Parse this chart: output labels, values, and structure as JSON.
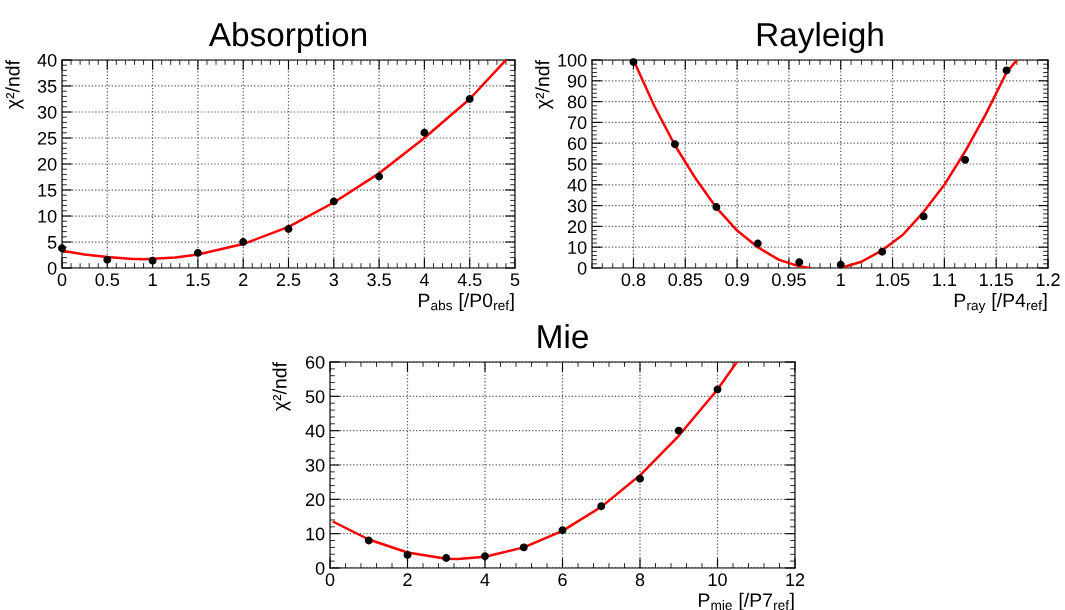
{
  "chart_data": [
    {
      "type": "scatter",
      "title": "Absorption",
      "xlabel": "P$_{abs}$ [/P0$_{ref}$]",
      "ylabel": "χ²/ndf",
      "xlim": [
        0,
        5
      ],
      "ylim": [
        0,
        40
      ],
      "xticks": [
        0,
        0.5,
        1,
        1.5,
        2,
        2.5,
        3,
        3.5,
        4,
        4.5,
        5
      ],
      "yticks": [
        0,
        5,
        10,
        15,
        20,
        25,
        30,
        35,
        40
      ],
      "grid": true,
      "legend": false,
      "series": [
        {
          "type": "line",
          "color": "#ff0000",
          "marker": "none",
          "x": [
            0,
            0.25,
            0.5,
            0.75,
            0.9,
            1.25,
            1.5,
            2,
            2.5,
            3,
            3.5,
            4,
            4.5,
            4.9
          ],
          "values": [
            3.3,
            2.6,
            2.1,
            1.8,
            1.7,
            2.0,
            2.6,
            4.6,
            7.9,
            12.6,
            18.2,
            25,
            32.5,
            40
          ]
        },
        {
          "color": "#000000",
          "marker": "circle",
          "x": [
            0,
            0.5,
            1,
            1.5,
            2,
            2.5,
            3,
            3.5,
            4,
            4.5
          ],
          "values": [
            3.8,
            1.6,
            1.4,
            2.9,
            5.0,
            7.5,
            12.8,
            17.6,
            26,
            32.5
          ]
        }
      ]
    },
    {
      "type": "scatter",
      "title": "Rayleigh",
      "xlabel": "P$_{ray}$ [/P4$_{ref}$]",
      "ylabel": "χ²/ndf",
      "xlim": [
        0.76,
        1.2
      ],
      "ylim": [
        0,
        100
      ],
      "xticks": [
        0.8,
        0.85,
        0.9,
        0.95,
        1,
        1.05,
        1.1,
        1.15,
        1.2
      ],
      "yticks": [
        0,
        10,
        20,
        30,
        40,
        50,
        60,
        70,
        80,
        90,
        100
      ],
      "grid": true,
      "legend": false,
      "series": [
        {
          "type": "line",
          "color": "#ff0000",
          "marker": "none",
          "x": [
            0.8,
            0.82,
            0.84,
            0.86,
            0.88,
            0.9,
            0.92,
            0.94,
            0.96,
            0.97,
            0.985,
            1.0,
            1.02,
            1.04,
            1.06,
            1.08,
            1.1,
            1.12,
            1.14,
            1.16,
            1.17
          ],
          "values": [
            100,
            78,
            59,
            43,
            29,
            18,
            10,
            4,
            0.8,
            0,
            null,
            0,
            3,
            8.5,
            16,
            27,
            40,
            56,
            74,
            94,
            100
          ]
        },
        {
          "color": "#000000",
          "marker": "circle",
          "x": [
            0.8,
            0.84,
            0.88,
            0.92,
            0.96,
            1.0,
            1.04,
            1.08,
            1.12,
            1.16
          ],
          "values": [
            99,
            59.5,
            29.3,
            11.8,
            2.8,
            1.6,
            7.8,
            24.8,
            52,
            95
          ]
        }
      ]
    },
    {
      "type": "scatter",
      "title": "Mie",
      "xlabel": "P$_{mie}$ [/P7$_{ref}$]",
      "ylabel": "χ²/ndf",
      "xlim": [
        0,
        12
      ],
      "ylim": [
        0,
        60
      ],
      "xticks": [
        0,
        2,
        4,
        6,
        8,
        10,
        12
      ],
      "yticks": [
        0,
        10,
        20,
        30,
        40,
        50,
        60
      ],
      "grid": true,
      "legend": false,
      "series": [
        {
          "type": "line",
          "color": "#ff0000",
          "marker": "none",
          "x": [
            0.1,
            1,
            2,
            3,
            3.3,
            4,
            5,
            6,
            7,
            8,
            9,
            10,
            10.5
          ],
          "values": [
            13.4,
            8.3,
            4.5,
            2.7,
            2.6,
            3.3,
            6,
            10.8,
            17.8,
            27,
            38.5,
            52,
            60
          ]
        },
        {
          "color": "#000000",
          "marker": "circle",
          "x": [
            1,
            2,
            3,
            4,
            5,
            6,
            7,
            8,
            9,
            10
          ],
          "values": [
            8,
            3.8,
            2.9,
            3.4,
            6,
            11,
            18,
            26,
            40,
            52
          ]
        }
      ]
    }
  ]
}
